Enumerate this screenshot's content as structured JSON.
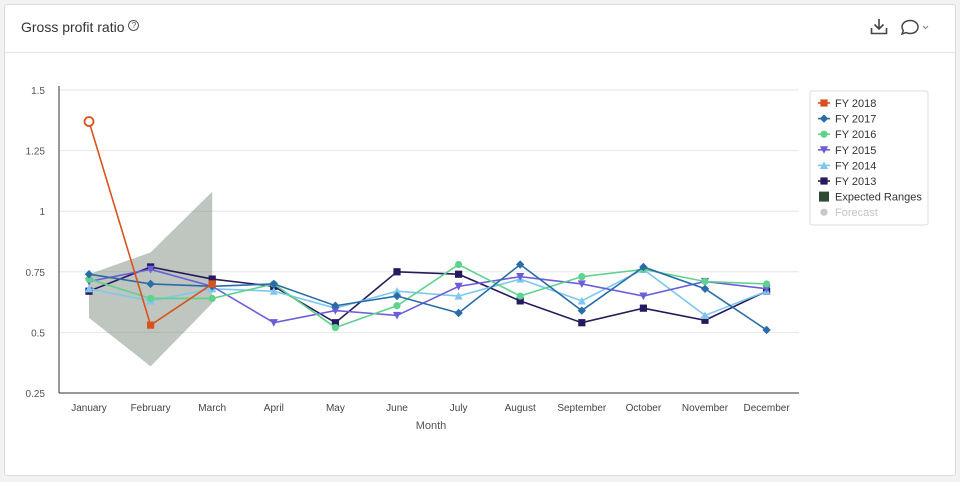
{
  "header": {
    "title": "Gross profit ratio",
    "help_glyph": "?",
    "icons": [
      "help-icon",
      "download-icon",
      "comment-icon",
      "chevron-down-icon"
    ]
  },
  "colors": {
    "FY 2018": "#d9521c",
    "FY 2017": "#2a6ca8",
    "FY 2016": "#5fd38d",
    "FY 2015": "#6b5fd9",
    "FY 2014": "#7ec8f0",
    "FY 2013": "#261a5e",
    "Expected Ranges": "#5f6e5f",
    "Forecast": "#c8c8c8"
  },
  "chart_data": {
    "type": "line",
    "title": "",
    "xlabel": "Month",
    "ylabel": "",
    "ylim": [
      0.25,
      1.5
    ],
    "yticks": [
      0.25,
      0.5,
      0.75,
      1,
      1.25,
      1.5
    ],
    "ytick_labels": [
      "0.25",
      "0.5",
      "0.75",
      "1",
      "1.25",
      "1.5"
    ],
    "grid": true,
    "legend_position": "right",
    "categories": [
      "January",
      "February",
      "March",
      "April",
      "May",
      "June",
      "July",
      "August",
      "September",
      "October",
      "November",
      "December"
    ],
    "series": [
      {
        "name": "FY 2018",
        "marker": "square",
        "values": [
          1.37,
          0.53,
          0.7,
          null,
          null,
          null,
          null,
          null,
          null,
          null,
          null,
          null
        ]
      },
      {
        "name": "FY 2017",
        "marker": "diamond",
        "values": [
          0.74,
          0.7,
          0.69,
          0.7,
          0.61,
          0.65,
          0.58,
          0.78,
          0.59,
          0.77,
          0.68,
          0.51
        ]
      },
      {
        "name": "FY 2016",
        "marker": "circle",
        "values": [
          0.72,
          0.64,
          0.64,
          0.7,
          0.52,
          0.61,
          0.78,
          0.65,
          0.73,
          0.76,
          0.71,
          0.7
        ]
      },
      {
        "name": "FY 2015",
        "marker": "triangle-down",
        "values": [
          0.71,
          0.76,
          0.69,
          0.54,
          0.59,
          0.57,
          0.69,
          0.73,
          0.7,
          0.65,
          0.71,
          0.68
        ]
      },
      {
        "name": "FY 2014",
        "marker": "triangle",
        "values": [
          0.68,
          0.63,
          0.68,
          0.67,
          0.6,
          0.67,
          0.65,
          0.72,
          0.63,
          0.76,
          0.57,
          0.67
        ]
      },
      {
        "name": "FY 2013",
        "marker": "square",
        "values": [
          0.67,
          0.77,
          0.72,
          0.69,
          0.54,
          0.75,
          0.74,
          0.63,
          0.54,
          0.6,
          0.55,
          0.67
        ]
      }
    ],
    "expected_range": {
      "name": "Expected Ranges",
      "upper": [
        0.74,
        0.83,
        1.08
      ],
      "lower": [
        0.56,
        0.36,
        0.62
      ]
    },
    "forecast": {
      "name": "Forecast",
      "visible": false
    },
    "legend": [
      "FY 2018",
      "FY 2017",
      "FY 2016",
      "FY 2015",
      "FY 2014",
      "FY 2013",
      "Expected Ranges",
      "Forecast"
    ]
  }
}
